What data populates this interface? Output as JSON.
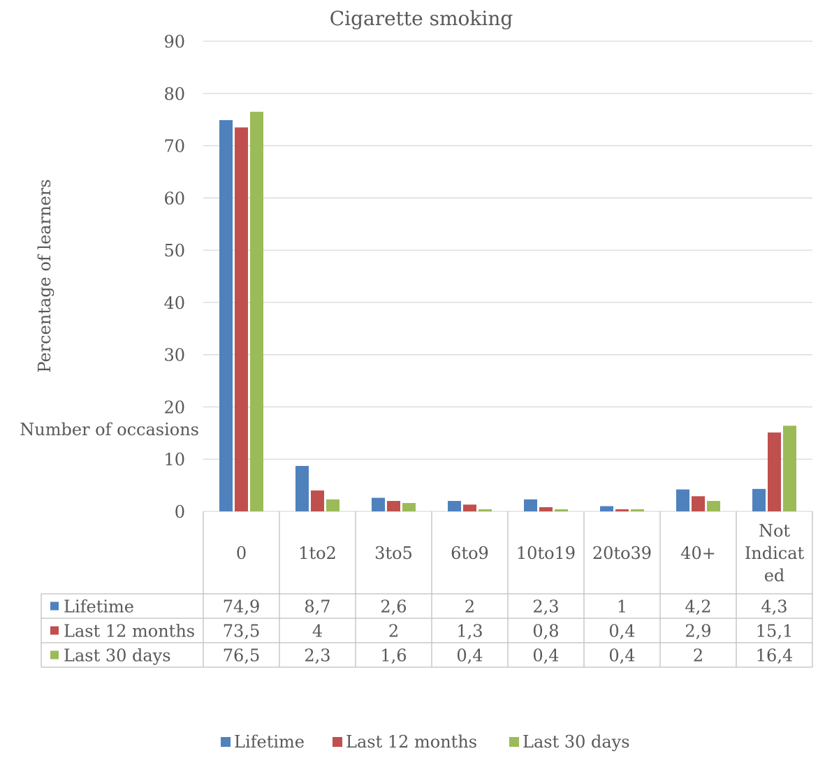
{
  "chart_data": {
    "type": "bar",
    "title": "Cigarette smoking",
    "ylabel": "Percentage of learners",
    "xlabel": "Number of occasions",
    "ylim": [
      0,
      90
    ],
    "yticks": [
      0,
      10,
      20,
      30,
      40,
      50,
      60,
      70,
      80,
      90
    ],
    "grid": true,
    "legend": "bottom",
    "data_table": true,
    "categories": [
      "0",
      "1to2",
      "3to5",
      "6to9",
      "10to19",
      "20to39",
      "40+",
      "Not Indicated"
    ],
    "category_label_lines": [
      [
        "0"
      ],
      [
        "1to2"
      ],
      [
        "3to5"
      ],
      [
        "6to9"
      ],
      [
        "10to19"
      ],
      [
        "20to39"
      ],
      [
        "40+"
      ],
      [
        "Not",
        "Indicat",
        "ed"
      ]
    ],
    "series": [
      {
        "name": "Lifetime",
        "color": "#4f81bd",
        "values": [
          74.9,
          8.7,
          2.6,
          2,
          2.3,
          1,
          4.2,
          4.3
        ],
        "value_labels": [
          "74,9",
          "8,7",
          "2,6",
          "2",
          "2,3",
          "1",
          "4,2",
          "4,3"
        ]
      },
      {
        "name": "Last 12 months",
        "color": "#c0504d",
        "values": [
          73.5,
          4,
          2,
          1.3,
          0.8,
          0.4,
          2.9,
          15.1
        ],
        "value_labels": [
          "73,5",
          "4",
          "2",
          "1,3",
          "0,8",
          "0,4",
          "2,9",
          "15,1"
        ]
      },
      {
        "name": "Last 30 days",
        "color": "#9bbb59",
        "values": [
          76.5,
          2.3,
          1.6,
          0.4,
          0.4,
          0.4,
          2,
          16.4
        ],
        "value_labels": [
          "76,5",
          "2,3",
          "1,6",
          "0,4",
          "0,4",
          "0,4",
          "2",
          "16,4"
        ]
      }
    ]
  }
}
